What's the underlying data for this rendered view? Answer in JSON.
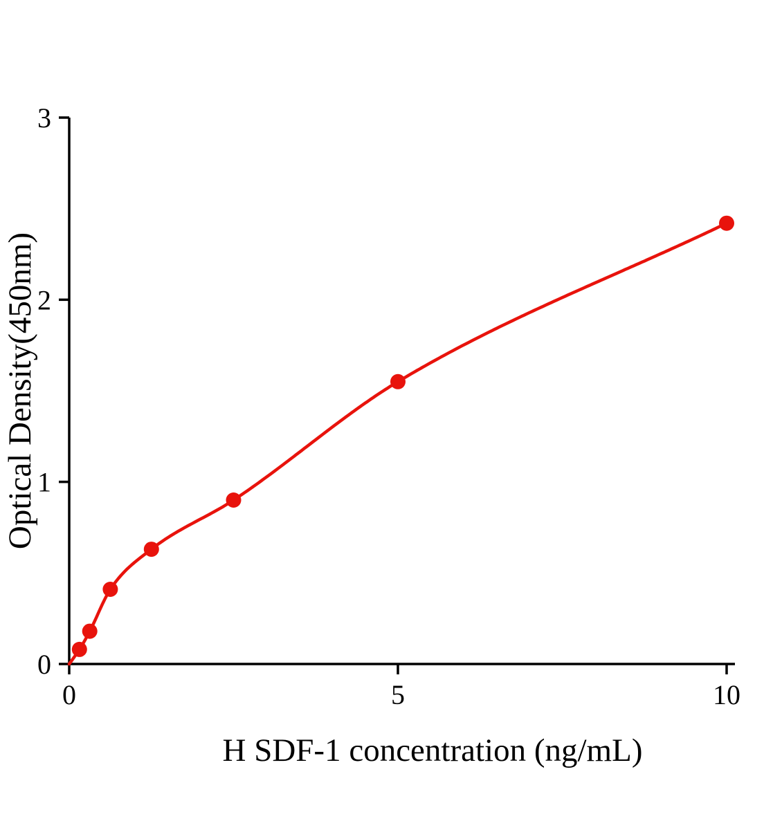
{
  "chart_data": {
    "type": "scatter",
    "title": "",
    "xlabel": "H SDF-1 concentration (ng/mL)",
    "ylabel": "Optical Density(450nm)",
    "x": [
      0.156,
      0.313,
      0.625,
      1.25,
      2.5,
      5,
      10
    ],
    "y": [
      0.08,
      0.18,
      0.41,
      0.63,
      0.9,
      1.55,
      2.42
    ],
    "curve_through_origin": true,
    "xlim": [
      0,
      10
    ],
    "ylim": [
      0,
      3
    ],
    "x_ticks": [
      0,
      5,
      10
    ],
    "y_ticks": [
      0,
      1,
      2,
      3
    ],
    "point_color": "#e8130c",
    "line_color": "#e8130c",
    "axis_color": "#000000",
    "background": "#ffffff",
    "grid": false,
    "legend": false
  }
}
